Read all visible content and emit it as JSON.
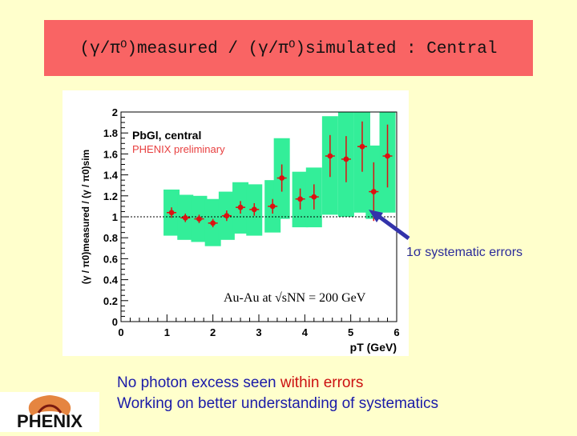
{
  "slide": {
    "title": "(γ/π⁰)measured / (γ/π⁰)simulated : Central",
    "annotation": "1σ systematic errors",
    "note_line1_part1": "No photon excess seen ",
    "note_line1_part2": "within errors",
    "note_line2": "Working on better understanding of systematics",
    "logo_text": "PHENIX",
    "colors": {
      "title_bg": "#f96464",
      "background": "#ffffcc",
      "band": "#33ee99",
      "points": "#dd1111",
      "text_blue": "#1a1aa8",
      "arrow": "#3333aa"
    }
  },
  "chart_data": {
    "type": "scatter",
    "legend_line1": "PbGl, central",
    "legend_line2": "PHENIX preliminary",
    "energy_label": "Au-Au at √sNN = 200 GeV",
    "xlabel": "pT (GeV)",
    "ylabel": "(γ / π0)measured / (γ / π0)sim",
    "xlim": [
      0,
      6
    ],
    "ylim": [
      0,
      2
    ],
    "x_ticks": [
      "0",
      "1",
      "2",
      "3",
      "4",
      "5",
      "6"
    ],
    "y_ticks": [
      "0",
      "0.2",
      "0.4",
      "0.6",
      "0.8",
      "1",
      "1.2",
      "1.4",
      "1.6",
      "1.8",
      "2"
    ],
    "reference_line": 1.0,
    "series": [
      {
        "x": [
          1.1,
          1.4,
          1.7,
          2.0,
          2.3,
          2.6,
          2.9,
          3.3,
          3.5,
          3.9,
          4.2,
          4.55,
          4.9,
          5.25,
          5.5,
          5.8
        ],
        "y": [
          1.04,
          0.99,
          0.98,
          0.94,
          1.01,
          1.09,
          1.07,
          1.1,
          1.37,
          1.17,
          1.19,
          1.58,
          1.55,
          1.67,
          1.24,
          1.58
        ],
        "err": [
          0.05,
          0.04,
          0.04,
          0.04,
          0.05,
          0.06,
          0.06,
          0.07,
          0.13,
          0.1,
          0.12,
          0.2,
          0.22,
          0.24,
          0.28,
          0.3
        ],
        "sys_low": [
          0.82,
          0.78,
          0.76,
          0.72,
          0.78,
          0.84,
          0.82,
          0.85,
          0.98,
          0.9,
          0.9,
          1.02,
          1.0,
          1.04,
          0.98,
          1.04
        ],
        "sys_high": [
          1.26,
          1.21,
          1.2,
          1.17,
          1.24,
          1.33,
          1.31,
          1.35,
          1.75,
          1.43,
          1.47,
          1.96,
          2.0,
          2.0,
          1.68,
          2.0
        ]
      }
    ]
  }
}
